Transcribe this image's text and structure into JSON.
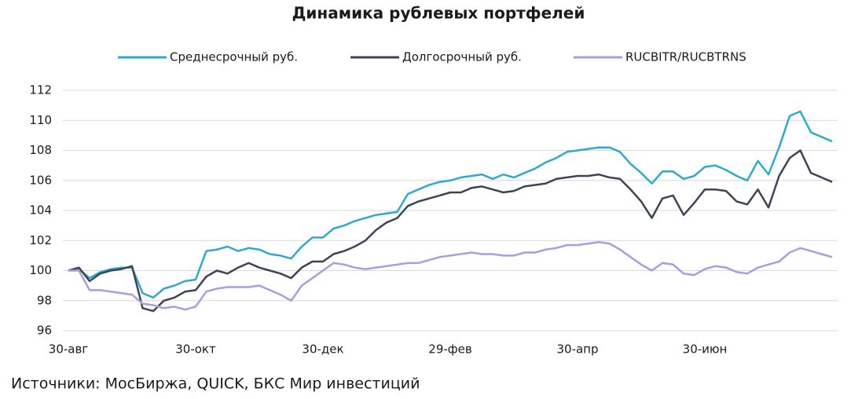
{
  "chart_data": {
    "type": "line",
    "title": "Динамика рублевых портфелей",
    "source": "Источники: МосБиржа, QUICK, БКС Мир инвестиций",
    "categories": [
      "30-авг",
      null,
      null,
      null,
      null,
      null,
      null,
      null,
      null,
      null,
      null,
      null,
      "30-окт",
      null,
      null,
      null,
      null,
      null,
      null,
      null,
      null,
      null,
      null,
      null,
      "30-дек",
      null,
      null,
      null,
      null,
      null,
      null,
      null,
      null,
      null,
      null,
      null,
      "29-фев",
      null,
      null,
      null,
      null,
      null,
      null,
      null,
      null,
      null,
      null,
      null,
      "30-апр",
      null,
      null,
      null,
      null,
      null,
      null,
      null,
      null,
      null,
      null,
      null,
      "30-июн",
      null,
      null,
      null,
      null,
      null,
      null,
      null,
      null,
      null,
      null,
      null,
      null
    ],
    "series": [
      {
        "name": "Среднесрочный руб.",
        "color": "#2eaad0",
        "values": [
          100,
          100.1,
          99.5,
          99.9,
          100.1,
          100.2,
          100.2,
          98.5,
          98.2,
          98.8,
          99,
          99.3,
          99.4,
          101.3,
          101.4,
          101.6,
          101.3,
          101.5,
          101.4,
          101.1,
          101,
          100.8,
          101.6,
          102.2,
          102.2,
          102.8,
          103,
          103.3,
          103.5,
          103.7,
          103.8,
          103.9,
          105.1,
          105.4,
          105.7,
          105.9,
          106,
          106.2,
          106.3,
          106.4,
          106.1,
          106.4,
          106.2,
          106.5,
          106.8,
          107.2,
          107.5,
          107.9,
          108,
          108.1,
          108.2,
          108.2,
          107.9,
          107.1,
          106.5,
          105.8,
          106.6,
          106.6,
          106.1,
          106.3,
          106.9,
          107,
          106.7,
          106.3,
          106,
          107.3,
          106.4,
          108.2,
          110.3,
          110.6,
          109.2,
          108.9,
          108.6
        ]
      },
      {
        "name": "Долгосрочный руб.",
        "color": "#3d4455",
        "values": [
          100,
          100.2,
          99.3,
          99.8,
          100,
          100.1,
          100.3,
          97.5,
          97.3,
          98,
          98.2,
          98.6,
          98.7,
          99.6,
          100,
          99.8,
          100.2,
          100.5,
          100.2,
          100,
          99.8,
          99.5,
          100.2,
          100.6,
          100.6,
          101.1,
          101.3,
          101.6,
          102,
          102.7,
          103.2,
          103.5,
          104.3,
          104.6,
          104.8,
          105,
          105.2,
          105.2,
          105.5,
          105.6,
          105.4,
          105.2,
          105.3,
          105.6,
          105.7,
          105.8,
          106.1,
          106.2,
          106.3,
          106.3,
          106.4,
          106.2,
          106.1,
          105.4,
          104.6,
          103.5,
          104.8,
          105,
          103.7,
          104.5,
          105.4,
          105.4,
          105.3,
          104.6,
          104.4,
          105.4,
          104.2,
          106.3,
          107.5,
          108,
          106.5,
          106.2,
          105.9
        ]
      },
      {
        "name": "RUCBITR/RUCBTRNS",
        "color": "#a89ee0",
        "values": [
          100,
          100,
          98.7,
          98.7,
          98.6,
          98.5,
          98.4,
          97.8,
          97.7,
          97.5,
          97.6,
          97.4,
          97.6,
          98.6,
          98.8,
          98.9,
          98.9,
          98.9,
          99,
          98.7,
          98.4,
          98,
          99,
          99.5,
          100,
          100.5,
          100.4,
          100.2,
          100.1,
          100.2,
          100.3,
          100.4,
          100.5,
          100.5,
          100.7,
          100.9,
          101,
          101.1,
          101.2,
          101.1,
          101.1,
          101,
          101,
          101.2,
          101.2,
          101.4,
          101.5,
          101.7,
          101.7,
          101.8,
          101.9,
          101.8,
          101.4,
          100.9,
          100.4,
          100,
          100.5,
          100.4,
          99.8,
          99.7,
          100.1,
          100.3,
          100.2,
          99.9,
          99.8,
          100.2,
          100.4,
          100.6,
          101.2,
          101.5,
          101.3,
          101.1,
          100.9
        ]
      }
    ],
    "ylim": [
      96,
      112
    ],
    "yticks": [
      96,
      98,
      100,
      102,
      104,
      106,
      108,
      110,
      112
    ],
    "grid": true
  }
}
